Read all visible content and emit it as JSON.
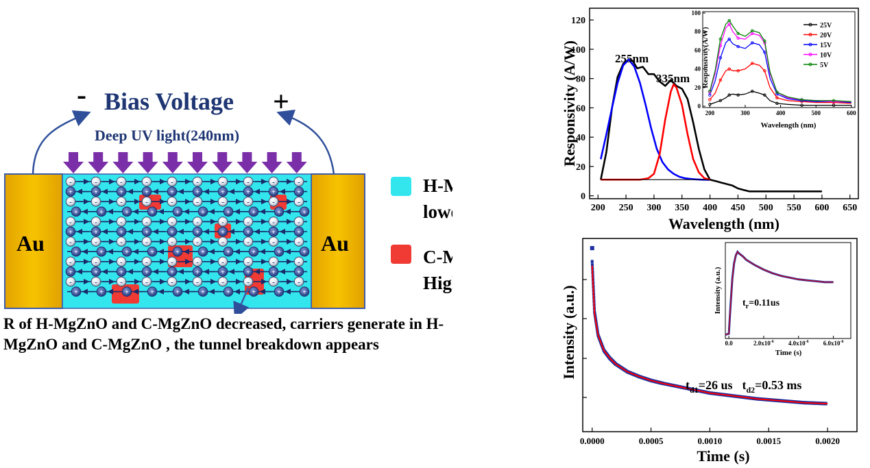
{
  "diagram": {
    "bias_minus": "-",
    "bias_label": "Bias Voltage",
    "bias_plus": "+",
    "uv_label": "Deep UV light(240nm)",
    "left_electrode": "Au",
    "right_electrode": "Au",
    "electron_symbol": "-",
    "hole_symbol": "+",
    "legend": [
      {
        "color": "#33e6ee",
        "line1": "H-MgZnO",
        "line2": "lower R"
      },
      {
        "color": "#f03a34",
        "line1": "C-MgZnO",
        "line2": "Higher R"
      }
    ],
    "caption": "R of H-MgZnO and C-MgZnO   decreased, carriers generate in H-MgZnO and C-MgZnO , the tunnel breakdown appears"
  },
  "chart_data": [
    {
      "type": "line",
      "xlabel": "Wavelength (nm)",
      "ylabel": "Responsivity (A/W)",
      "xlim": [
        185,
        665
      ],
      "ylim": [
        -2,
        128
      ],
      "xticks": [
        200,
        250,
        300,
        350,
        400,
        450,
        500,
        550,
        600,
        650
      ],
      "yticks": [
        0,
        20,
        40,
        60,
        80,
        100,
        120
      ],
      "annotations": [
        "255nm",
        "335nm"
      ],
      "series": [
        {
          "color": "#000000",
          "x": [
            205,
            215,
            225,
            235,
            245,
            255,
            262,
            270,
            280,
            290,
            300,
            310,
            320,
            330,
            340,
            350,
            360,
            370,
            380,
            390,
            400,
            410,
            420,
            430,
            440,
            450,
            460,
            470,
            480,
            500,
            520,
            540,
            560,
            580,
            600
          ],
          "values": [
            11,
            30,
            60,
            81,
            90,
            93,
            92,
            87,
            88,
            83,
            83,
            78,
            75,
            79,
            75,
            73,
            66,
            50,
            32,
            18,
            11,
            10,
            9,
            8,
            7,
            5,
            4,
            3,
            3,
            3,
            3,
            3,
            3,
            3,
            3
          ]
        },
        {
          "color": "#0000ff",
          "x": [
            205,
            215,
            225,
            235,
            245,
            255,
            265,
            275,
            285,
            295,
            305,
            315,
            325,
            335,
            345,
            355,
            365,
            375,
            385,
            395,
            400
          ],
          "values": [
            25,
            42,
            60,
            77,
            89,
            93,
            88,
            77,
            62,
            46,
            32,
            23,
            18,
            15,
            13,
            12,
            11.5,
            11.2,
            11,
            10.9,
            10.9
          ]
        },
        {
          "color": "#ff0000",
          "x": [
            205,
            250,
            275,
            290,
            300,
            310,
            320,
            330,
            335,
            340,
            350,
            360,
            370,
            380,
            390,
            400
          ],
          "values": [
            11,
            11,
            11,
            12,
            15,
            28,
            52,
            71,
            76,
            74,
            62,
            42,
            25,
            16,
            12,
            11
          ]
        },
        {
          "color": "#000000",
          "x": [
            205,
            400
          ],
          "values": [
            11,
            11
          ]
        }
      ],
      "inset": {
        "xlabel": "Wavelength (nm)",
        "ylabel": "Responsivity(A/W)",
        "xlim": [
          180,
          610
        ],
        "ylim": [
          0,
          100
        ],
        "xticks": [
          200,
          300,
          400,
          500,
          600
        ],
        "yticks": [
          0,
          20,
          40,
          60,
          80,
          100
        ],
        "x": [
          200,
          215,
          230,
          245,
          255,
          265,
          280,
          300,
          320,
          340,
          355,
          370,
          390,
          420,
          460,
          500,
          550,
          600
        ],
        "series": [
          {
            "name": "25V",
            "color": "#000000",
            "values": [
              2,
              4,
              6,
              9,
              12,
              13,
              12,
              13,
              16,
              14,
              12,
              6,
              3,
              2,
              1,
              1,
              1,
              1
            ]
          },
          {
            "name": "20V",
            "color": "#ff0000",
            "values": [
              7,
              14,
              28,
              38,
              40,
              38,
              38,
              40,
              46,
              44,
              38,
              20,
              9,
              6,
              5,
              4,
              4,
              3
            ]
          },
          {
            "name": "15V",
            "color": "#0000ff",
            "values": [
              12,
              27,
              52,
              68,
              72,
              67,
              64,
              62,
              68,
              66,
              58,
              30,
              13,
              8,
              6,
              5,
              5,
              4
            ]
          },
          {
            "name": "10V",
            "color": "#ff00ff",
            "values": [
              15,
              35,
              65,
              84,
              88,
              80,
              73,
              72,
              78,
              76,
              68,
              35,
              15,
              9,
              7,
              6,
              5,
              5
            ]
          },
          {
            "name": "5V",
            "color": "#008000",
            "values": [
              16,
              38,
              72,
              88,
              92,
              86,
              78,
              75,
              81,
              79,
              70,
              37,
              15,
              10,
              7,
              6,
              6,
              5
            ]
          }
        ]
      }
    },
    {
      "type": "line",
      "xlabel": "Time (s)",
      "ylabel": "Intensity (a.u.)",
      "xlim": [
        -8e-05,
        0.00225
      ],
      "ylim": [
        0,
        1
      ],
      "xticks": [
        "0.0000",
        "0.0005",
        "0.0010",
        "0.0015",
        "0.0020"
      ],
      "xtick_values": [
        0,
        0.0005,
        0.001,
        0.0015,
        0.002
      ],
      "annotation": {
        "t1_label": "t",
        "t1_sub": "d1",
        "t1_value": "=26 us",
        "t2_label": "t",
        "t2_sub": "d2",
        "t2_value": "=0.53 ms"
      },
      "x": [
        0,
        2e-05,
        5e-05,
        0.0001,
        0.00015,
        0.0002,
        0.0003,
        0.0004,
        0.0005,
        0.0006,
        0.0008,
        0.001,
        0.0012,
        0.0014,
        0.0016,
        0.0018,
        0.002
      ],
      "series": [
        {
          "name": "data",
          "color": "#1a2fa0",
          "values": [
            0.88,
            0.62,
            0.5,
            0.42,
            0.38,
            0.35,
            0.31,
            0.285,
            0.265,
            0.25,
            0.225,
            0.2,
            0.185,
            0.17,
            0.16,
            0.15,
            0.145
          ]
        },
        {
          "name": "fit",
          "color": "#ff0000",
          "values": [
            0.86,
            0.61,
            0.5,
            0.42,
            0.38,
            0.35,
            0.31,
            0.285,
            0.265,
            0.25,
            0.225,
            0.2,
            0.185,
            0.17,
            0.16,
            0.15,
            0.145
          ]
        }
      ],
      "inset": {
        "xlabel": "Time (s)",
        "ylabel": "Intensity (a.u.)",
        "xticks": [
          "0.0",
          "2.0x10",
          "4.0x10",
          "6.0x10"
        ],
        "xtick_exp": "-6",
        "xlim": [
          -0.2,
          7.0
        ],
        "annotation": {
          "label": "t",
          "sub": "r",
          "value": "=0.11us"
        },
        "x": [
          -0.2,
          0.0,
          0.1,
          0.2,
          0.3,
          0.4,
          0.5,
          0.6,
          0.8,
          1.0,
          1.5,
          2.0,
          2.5,
          3.0,
          3.5,
          4.0,
          4.5,
          5.0,
          5.5,
          6.0
        ],
        "values": [
          0.02,
          0.03,
          0.35,
          0.65,
          0.82,
          0.91,
          0.95,
          0.93,
          0.9,
          0.86,
          0.8,
          0.75,
          0.71,
          0.68,
          0.66,
          0.64,
          0.63,
          0.62,
          0.61,
          0.61
        ]
      }
    }
  ]
}
